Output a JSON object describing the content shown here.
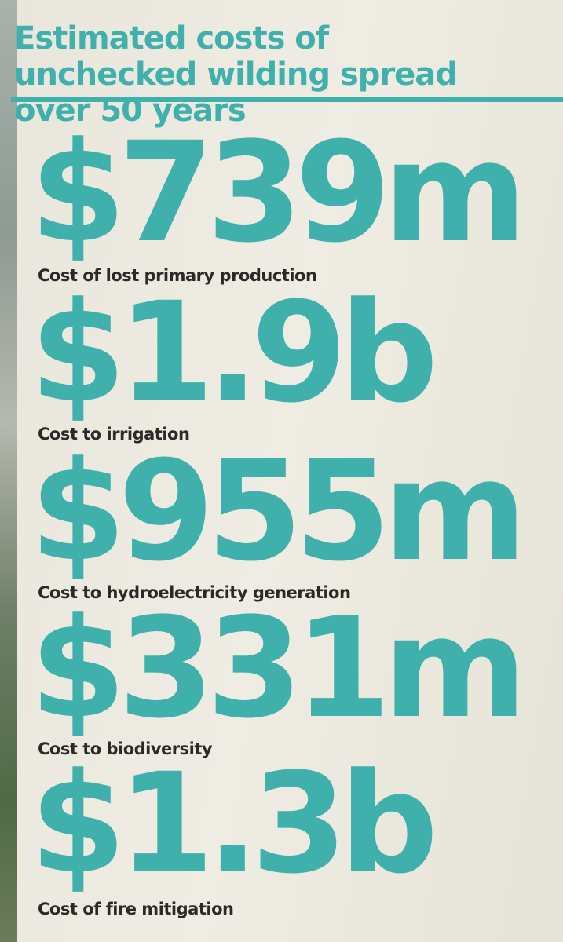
{
  "title": "Estimated costs of unchecked wilding spread over 50 years",
  "items": [
    {
      "amount": "$739m",
      "label": "Cost of lost primary production"
    },
    {
      "amount": "$1.9b",
      "label": "Cost to irrigation"
    },
    {
      "amount": "$955m",
      "label": "Cost to hydroelectricity generation"
    },
    {
      "amount": "$331m",
      "label": "Cost to biodiversity"
    },
    {
      "amount": "$1.3b",
      "label": "Cost of fire mitigation"
    }
  ]
}
